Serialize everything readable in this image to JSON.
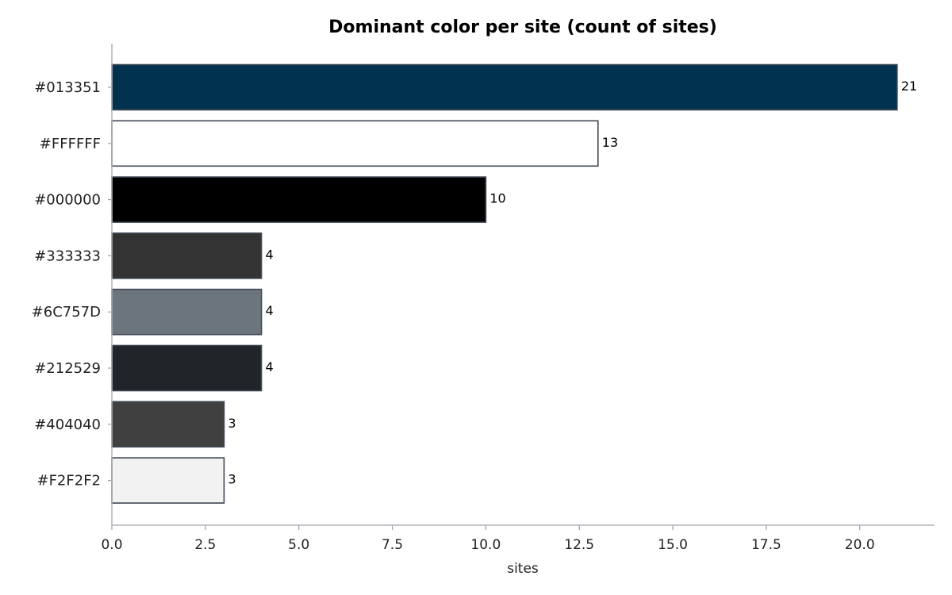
{
  "chart_data": {
    "type": "bar",
    "orientation": "horizontal",
    "title": "Dominant color per site (count of sites)",
    "xlabel": "sites",
    "ylabel": "",
    "categories": [
      "#013351",
      "#FFFFFF",
      "#000000",
      "#333333",
      "#6C757D",
      "#212529",
      "#404040",
      "#F2F2F2"
    ],
    "values": [
      21,
      13,
      10,
      4,
      4,
      4,
      3,
      3
    ],
    "value_labels": [
      "21",
      "13",
      "10",
      "4",
      "4",
      "4",
      "3",
      "3"
    ],
    "bar_colors": [
      "#013351",
      "#FFFFFF",
      "#000000",
      "#333333",
      "#6C757D",
      "#212529",
      "#404040",
      "#F2F2F2"
    ],
    "bar_edge_color": "#3f4652",
    "xlim": [
      0,
      22
    ],
    "xticks": [
      0,
      2.5,
      5,
      7.5,
      10,
      12.5,
      15,
      17.5,
      20
    ],
    "xtick_labels": [
      "0.0",
      "2.5",
      "5.0",
      "7.5",
      "10.0",
      "12.5",
      "15.0",
      "17.5",
      "20.0"
    ],
    "grid": false,
    "legend": "none"
  }
}
